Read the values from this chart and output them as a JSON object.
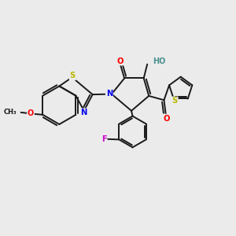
{
  "bg_color": "#ebebeb",
  "bond_color": "#1a1a1a",
  "bond_width": 1.4,
  "atom_colors": {
    "N": "#0000ee",
    "O": "#ff0000",
    "S": "#b8b800",
    "HO": "#4a9090",
    "F": "#cc00cc"
  },
  "figsize": [
    3.0,
    3.0
  ],
  "dpi": 100
}
